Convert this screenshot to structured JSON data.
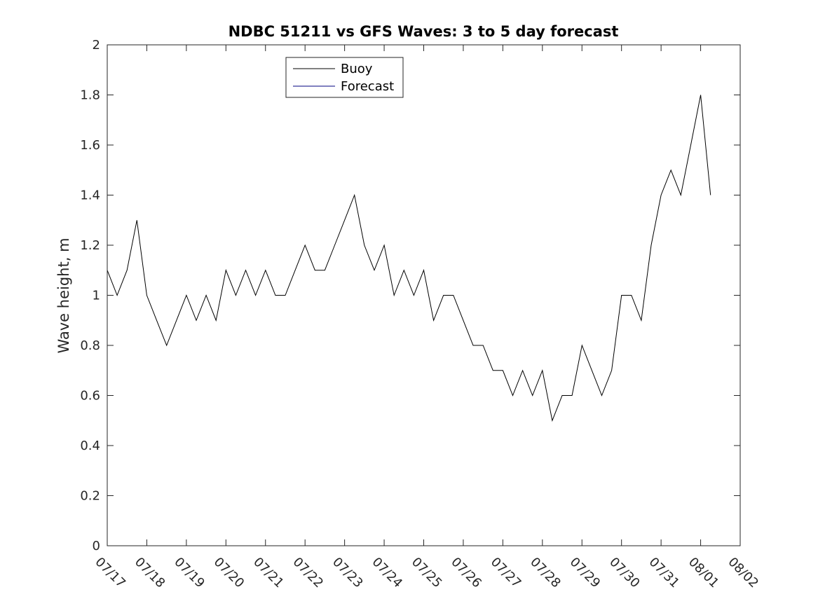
{
  "chart_data": {
    "type": "line",
    "title": "NDBC 51211 vs GFS Waves: 3 to 5 day forecast",
    "xlabel": "",
    "ylabel": "Wave height, m",
    "xlim": [
      "07/17",
      "08/02"
    ],
    "ylim": [
      0,
      2
    ],
    "x_tick_labels": [
      "07/17",
      "07/18",
      "07/19",
      "07/20",
      "07/21",
      "07/22",
      "07/23",
      "07/24",
      "07/25",
      "07/26",
      "07/27",
      "07/28",
      "07/29",
      "07/30",
      "07/31",
      "08/01",
      "08/02"
    ],
    "y_ticks": [
      0,
      0.2,
      0.4,
      0.6,
      0.8,
      1,
      1.2,
      1.4,
      1.6,
      1.8,
      2
    ],
    "y_tick_labels": [
      "0",
      "0.2",
      "0.4",
      "0.6",
      "0.8",
      "1",
      "1.2",
      "1.4",
      "1.6",
      "1.8",
      "2"
    ],
    "grid": false,
    "legend_position": "top-center",
    "legend": [
      "Buoy",
      "Forecast"
    ],
    "series": [
      {
        "name": "Buoy",
        "color": "#000000",
        "x": [
          "07/17 00:00",
          "07/17 06:00",
          "07/17 12:00",
          "07/17 18:00",
          "07/18 00:00",
          "07/18 06:00",
          "07/18 12:00",
          "07/18 18:00",
          "07/19 00:00",
          "07/19 06:00",
          "07/19 12:00",
          "07/19 18:00",
          "07/20 00:00",
          "07/20 06:00",
          "07/20 12:00",
          "07/20 18:00",
          "07/21 00:00",
          "07/21 06:00",
          "07/21 12:00",
          "07/21 18:00",
          "07/22 00:00",
          "07/22 06:00",
          "07/22 12:00",
          "07/22 18:00",
          "07/23 00:00",
          "07/23 06:00",
          "07/23 12:00",
          "07/23 18:00",
          "07/24 00:00",
          "07/24 06:00",
          "07/24 12:00",
          "07/24 18:00",
          "07/25 00:00",
          "07/25 06:00",
          "07/25 12:00",
          "07/25 18:00",
          "07/26 00:00",
          "07/26 06:00",
          "07/26 12:00",
          "07/26 18:00",
          "07/27 00:00",
          "07/27 06:00",
          "07/27 12:00",
          "07/27 18:00",
          "07/28 00:00",
          "07/28 06:00",
          "07/28 12:00",
          "07/28 18:00",
          "07/29 00:00",
          "07/29 06:00",
          "07/29 12:00",
          "07/29 18:00",
          "07/30 00:00",
          "07/30 06:00",
          "07/30 12:00",
          "07/30 18:00",
          "07/31 00:00",
          "07/31 06:00",
          "07/31 12:00",
          "07/31 18:00",
          "08/01 00:00",
          "08/01 06:00"
        ],
        "values": [
          1.1,
          1.0,
          1.1,
          1.3,
          1.0,
          0.9,
          0.8,
          0.9,
          1.0,
          0.9,
          1.0,
          0.9,
          1.1,
          1.0,
          1.1,
          1.0,
          1.1,
          1.0,
          1.0,
          1.1,
          1.2,
          1.1,
          1.1,
          1.2,
          1.3,
          1.4,
          1.2,
          1.1,
          1.2,
          1.0,
          1.1,
          1.0,
          1.1,
          0.9,
          1.0,
          1.0,
          0.9,
          0.8,
          0.8,
          0.7,
          0.7,
          0.6,
          0.7,
          0.6,
          0.7,
          0.5,
          0.6,
          0.6,
          0.8,
          0.7,
          0.6,
          0.7,
          1.0,
          1.0,
          0.9,
          1.2,
          1.4,
          1.5,
          1.4,
          1.6,
          1.8,
          1.4
        ]
      },
      {
        "name": "Forecast",
        "color": "#000080",
        "x": [],
        "values": []
      }
    ]
  }
}
